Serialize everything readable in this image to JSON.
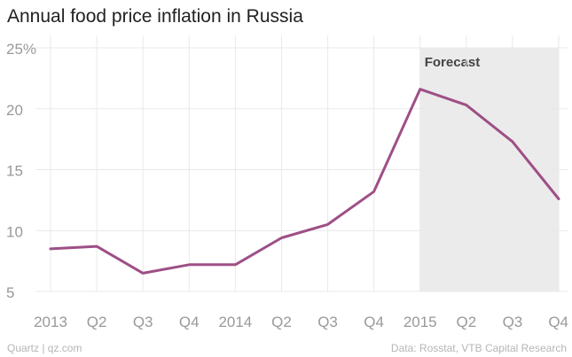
{
  "chart_data": {
    "type": "line",
    "title": "Annual food price inflation in Russia",
    "xlabel": "",
    "ylabel": "",
    "x_ticks": [
      "2013",
      "Q2",
      "Q3",
      "Q4",
      "2014",
      "Q2",
      "Q3",
      "Q4",
      "2015",
      "Q2",
      "Q3",
      "Q4"
    ],
    "series": [
      {
        "values": [
          8.5,
          8.7,
          6.5,
          7.2,
          7.2,
          9.4,
          10.5,
          13.2,
          21.6,
          20.3,
          17.3,
          12.6
        ]
      }
    ],
    "y_ticks": [
      5,
      10,
      15,
      20,
      25
    ],
    "y_tick_labels": [
      "5",
      "10",
      "15",
      "20",
      "25%"
    ],
    "ylim": [
      5,
      25
    ],
    "grid": true,
    "forecast": {
      "label": "Forecast",
      "start_index": 8,
      "end_index": 11
    },
    "colors": {
      "line": "#9e4f86",
      "grid": "#e9e9e9",
      "forecast_band": "#ebebeb",
      "tick": "#999999"
    }
  },
  "footer": {
    "left": "Quartz | qz.com",
    "right": "Data: Rosstat, VTB Capital Research"
  }
}
